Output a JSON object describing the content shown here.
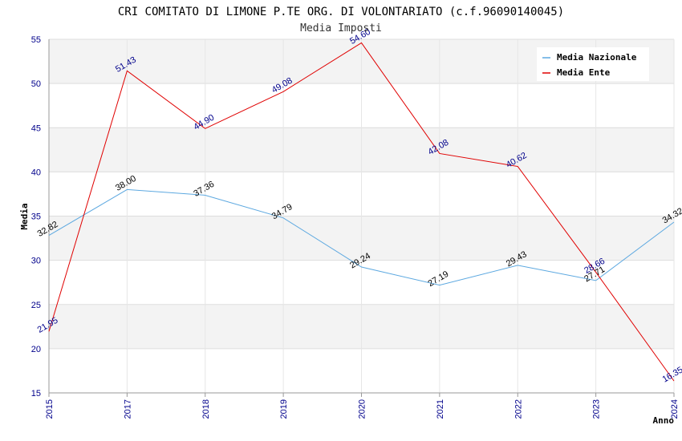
{
  "chart_data": {
    "type": "line",
    "title": "CRI COMITATO DI LIMONE P.TE ORG. DI VOLONTARIATO (c.f.96090140045)",
    "subtitle": "Media Imposti",
    "xlabel": "Anno",
    "ylabel": "Media",
    "ylim": [
      15,
      55
    ],
    "yticks": [
      15,
      20,
      25,
      30,
      35,
      40,
      45,
      50,
      55
    ],
    "categories": [
      "2015",
      "2017",
      "2018",
      "2019",
      "2020",
      "2021",
      "2022",
      "2023",
      "2024"
    ],
    "grid": true,
    "legend_position": "top-right",
    "series": [
      {
        "name": "Media Nazionale",
        "color": "#5ca8e0",
        "values": [
          32.82,
          38.0,
          37.36,
          34.79,
          29.24,
          27.19,
          29.43,
          27.71,
          34.32
        ],
        "labels": [
          "32.82",
          "38.00",
          "37.36",
          "34.79",
          "29.24",
          "27.19",
          "29.43",
          "27.71",
          "34.32"
        ]
      },
      {
        "name": "Media Ente",
        "color": "#e00000",
        "values": [
          21.95,
          51.43,
          44.9,
          49.08,
          54.6,
          42.08,
          40.62,
          28.66,
          16.35
        ],
        "labels": [
          "21.95",
          "51.43",
          "44.90",
          "49.08",
          "54.60",
          "42.08",
          "40.62",
          "28.66",
          "16.35"
        ]
      }
    ]
  }
}
